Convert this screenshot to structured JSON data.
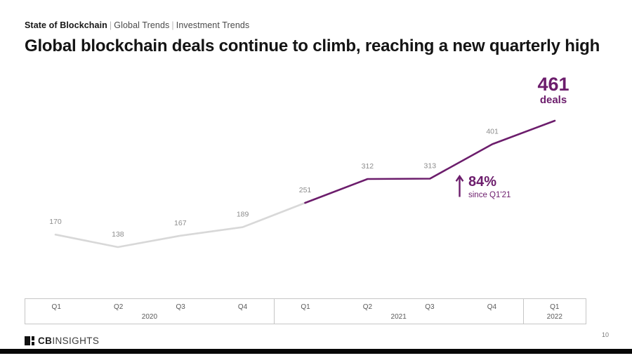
{
  "breadcrumb": {
    "report": "State of Blockchain",
    "separator": "|",
    "section": "Global Trends",
    "subsection": "Investment Trends"
  },
  "title": "Global blockchain deals continue to climb, reaching a new quarterly high",
  "chart_data": {
    "type": "line",
    "title": "Global blockchain deals continue to climb, reaching a new quarterly high",
    "categories": [
      "Q1 2020",
      "Q2 2020",
      "Q3 2020",
      "Q4 2020",
      "Q1 2021",
      "Q2 2021",
      "Q3 2021",
      "Q4 2021",
      "Q1 2022"
    ],
    "values": [
      170,
      138,
      167,
      189,
      251,
      312,
      313,
      401,
      461
    ],
    "x_groups": [
      {
        "year": "2020",
        "quarters": [
          "Q1",
          "Q2",
          "Q3",
          "Q4"
        ]
      },
      {
        "year": "2021",
        "quarters": [
          "Q1",
          "Q2",
          "Q3",
          "Q4"
        ]
      },
      {
        "year": "2022",
        "quarters": [
          "Q1"
        ]
      }
    ],
    "highlight_from_index": 4,
    "annotation": {
      "pct": "84%",
      "caption": "since Q1'21"
    },
    "final_label": {
      "value": "461",
      "unit": "deals"
    },
    "ylim": [
      100,
      480
    ],
    "grid": false,
    "legend": false,
    "colors": {
      "highlight": "#6c1d6c",
      "past": "#d8d8d8",
      "label": "#8c8c8c"
    }
  },
  "footer": {
    "logo_bold": "CB",
    "logo_light": "INSIGHTS",
    "page_number": "10"
  }
}
